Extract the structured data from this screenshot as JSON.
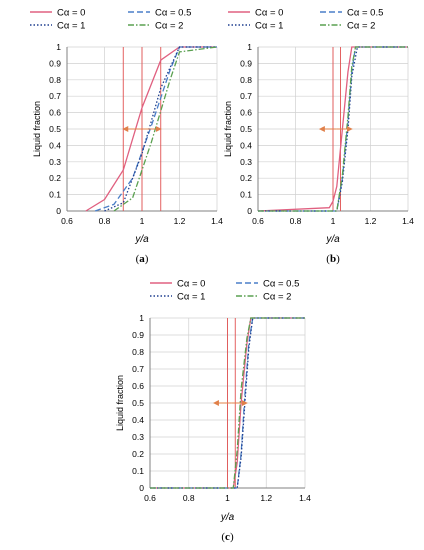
{
  "figure": {
    "panels": [
      {
        "id": "a",
        "label_open": "(",
        "label_letter": "a",
        "label_close": ")",
        "ylabel": "Liquid fraction",
        "xlabel": "y/a",
        "xticks": [
          "0.6",
          "0.8",
          "1",
          "1.2",
          "1.4"
        ],
        "yticks": [
          "0",
          "0.1",
          "0.2",
          "0.3",
          "0.4",
          "0.5",
          "0.6",
          "0.7",
          "0.8",
          "0.9",
          "1"
        ],
        "legend": [
          "Cα = 0",
          "Cα = 0.5",
          "Cα = 1",
          "Cα = 2"
        ]
      },
      {
        "id": "b",
        "label_open": "(",
        "label_letter": "b",
        "label_close": ")",
        "ylabel": "Liquid fraction",
        "xlabel": "y/a",
        "xticks": [
          "0.6",
          "0.8",
          "1",
          "1.2",
          "1.4"
        ],
        "yticks": [
          "0",
          "0.1",
          "0.2",
          "0.3",
          "0.4",
          "0.5",
          "0.6",
          "0.7",
          "0.8",
          "0.9",
          "1"
        ],
        "legend": [
          "Cα = 0",
          "Cα = 0.5",
          "Cα = 1",
          "Cα = 2"
        ]
      },
      {
        "id": "c",
        "label_open": "(",
        "label_letter": "c",
        "label_close": ")",
        "ylabel": "Liquid fraction",
        "xlabel": "y/a",
        "xticks": [
          "0.6",
          "0.8",
          "1",
          "1.2",
          "1.4"
        ],
        "yticks": [
          "0",
          "0.1",
          "0.2",
          "0.3",
          "0.4",
          "0.5",
          "0.6",
          "0.7",
          "0.8",
          "0.9",
          "1"
        ],
        "legend": [
          "Cα = 0",
          "Cα = 0.5",
          "Cα = 1",
          "Cα = 2"
        ]
      }
    ]
  },
  "chart_data": [
    {
      "type": "line",
      "xlabel": "y/a",
      "ylabel": "Liquid fraction",
      "xlim": [
        0.6,
        1.4
      ],
      "ylim": [
        0,
        1
      ],
      "grid": true,
      "legend_position": "top",
      "series": [
        {
          "name": "Cα = 0",
          "color": "#e06080",
          "style": "solid",
          "x": [
            0.7,
            0.8,
            0.9,
            1.0,
            1.1,
            1.2,
            1.4
          ],
          "y": [
            0,
            0.07,
            0.25,
            0.63,
            0.92,
            1,
            1
          ]
        },
        {
          "name": "Cα = 0.5",
          "color": "#4a7fc8",
          "style": "dash",
          "x": [
            0.75,
            0.85,
            0.95,
            1.05,
            1.15,
            1.2,
            1.4
          ],
          "y": [
            0,
            0.04,
            0.2,
            0.52,
            0.86,
            1,
            1
          ]
        },
        {
          "name": "Cα = 1",
          "color": "#1f3f8f",
          "style": "dot",
          "x": [
            0.8,
            0.9,
            1.0,
            1.1,
            1.2,
            1.4
          ],
          "y": [
            0,
            0.05,
            0.35,
            0.75,
            1,
            1
          ]
        },
        {
          "name": "Cα = 2",
          "color": "#5aa050",
          "style": "dashdot",
          "x": [
            0.85,
            0.95,
            1.05,
            1.15,
            1.2,
            1.4
          ],
          "y": [
            0,
            0.08,
            0.42,
            0.8,
            0.97,
            1
          ]
        }
      ],
      "vlines": [
        0.9,
        1.0,
        1.1
      ],
      "arrow": {
        "y": 0.5,
        "x_center": 1.0,
        "x_left": 0.9,
        "x_right": 1.1,
        "color": "#e0804a"
      }
    },
    {
      "type": "line",
      "xlabel": "y/a",
      "ylabel": "Liquid fraction",
      "xlim": [
        0.6,
        1.4
      ],
      "ylim": [
        0,
        1
      ],
      "grid": true,
      "legend_position": "top",
      "series": [
        {
          "name": "Cα = 0",
          "color": "#e06080",
          "style": "solid",
          "x": [
            0.6,
            0.98,
            1.0,
            1.02,
            1.05,
            1.08,
            1.1,
            1.4
          ],
          "y": [
            0,
            0.02,
            0.06,
            0.15,
            0.5,
            0.85,
            1,
            1
          ]
        },
        {
          "name": "Cα = 0.5",
          "color": "#4a7fc8",
          "style": "dash",
          "x": [
            0.6,
            1.02,
            1.05,
            1.08,
            1.1,
            1.12,
            1.4
          ],
          "y": [
            0,
            0,
            0.2,
            0.55,
            0.85,
            1,
            1
          ]
        },
        {
          "name": "Cα = 1",
          "color": "#1f3f8f",
          "style": "dot",
          "x": [
            0.6,
            1.02,
            1.05,
            1.08,
            1.1,
            1.13,
            1.4
          ],
          "y": [
            0,
            0,
            0.18,
            0.5,
            0.82,
            1,
            1
          ]
        },
        {
          "name": "Cα = 2",
          "color": "#5aa050",
          "style": "dashdot",
          "x": [
            0.6,
            1.02,
            1.05,
            1.08,
            1.1,
            1.12,
            1.4
          ],
          "y": [
            0,
            0,
            0.22,
            0.58,
            0.88,
            1,
            1
          ]
        }
      ],
      "vlines": [
        1.0,
        1.04
      ],
      "arrow": {
        "y": 0.5,
        "x_center": 1.02,
        "x_left": 0.93,
        "x_right": 1.1,
        "color": "#e0804a"
      }
    },
    {
      "type": "line",
      "xlabel": "y/a",
      "ylabel": "Liquid fraction",
      "xlim": [
        0.6,
        1.4
      ],
      "ylim": [
        0,
        1
      ],
      "grid": true,
      "legend_position": "top",
      "series": [
        {
          "name": "Cα = 0",
          "color": "#e06080",
          "style": "solid",
          "x": [
            0.6,
            1.03,
            1.05,
            1.07,
            1.1,
            1.12,
            1.4
          ],
          "y": [
            0,
            0,
            0.15,
            0.5,
            0.85,
            1,
            1
          ]
        },
        {
          "name": "Cα = 0.5",
          "color": "#4a7fc8",
          "style": "dash",
          "x": [
            0.6,
            1.05,
            1.07,
            1.09,
            1.11,
            1.13,
            1.4
          ],
          "y": [
            0,
            0,
            0.2,
            0.55,
            0.85,
            1,
            1
          ]
        },
        {
          "name": "Cα = 1",
          "color": "#1f3f8f",
          "style": "dot",
          "x": [
            0.6,
            1.05,
            1.07,
            1.09,
            1.11,
            1.13,
            1.4
          ],
          "y": [
            0,
            0,
            0.18,
            0.5,
            0.82,
            1,
            1
          ]
        },
        {
          "name": "Cα = 2",
          "color": "#5aa050",
          "style": "dashdot",
          "x": [
            0.6,
            1.03,
            1.05,
            1.07,
            1.1,
            1.12,
            1.4
          ],
          "y": [
            0,
            0,
            0.22,
            0.58,
            0.88,
            1,
            1
          ]
        }
      ],
      "vlines": [
        1.0,
        1.04
      ],
      "arrow": {
        "y": 0.5,
        "x_center": 1.02,
        "x_left": 0.93,
        "x_right": 1.1,
        "color": "#e0804a"
      }
    }
  ]
}
